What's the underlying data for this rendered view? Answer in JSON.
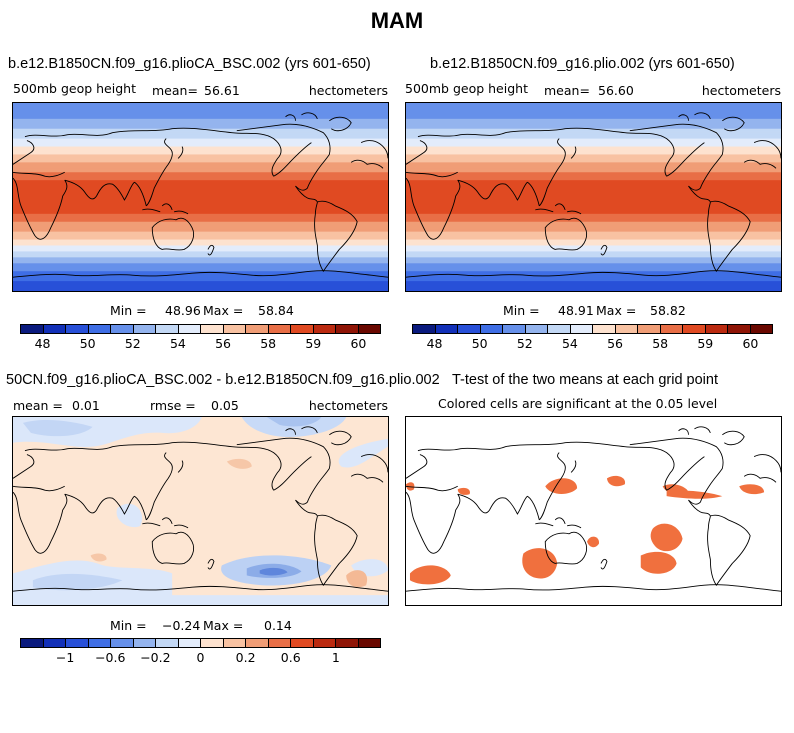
{
  "figure": {
    "title": "MAM"
  },
  "panels": [
    {
      "title": "b.e12.B1850CN.f09_g16.plioCA_BSC.002 (yrs 601-650)",
      "variable": "500mb geop height",
      "mean_text": "mean=",
      "mean_value": "56.61",
      "units": "hectometers",
      "min_label": "Min =",
      "min_value": "48.96",
      "max_label": "Max =",
      "max_value": "58.84"
    },
    {
      "title": "b.e12.B1850CN.f09_g16.plio.002 (yrs 601-650)",
      "variable": "500mb geop height",
      "mean_text": "mean=",
      "mean_value": "56.60",
      "units": "hectometers",
      "min_label": "Min =",
      "min_value": "48.91",
      "max_label": "Max =",
      "max_value": "58.82"
    },
    {
      "title": "50CN.f09_g16.plioCA_BSC.002 - b.e12.B1850CN.f09_g16.plio.002",
      "mean_text": "mean =",
      "mean_value": "0.01",
      "rmse_text": "rmse =",
      "rmse_value": "0.05",
      "units": "hectometers",
      "min_label": "Min =",
      "min_value": "−0.24",
      "max_label": "Max =",
      "max_value": "0.14"
    },
    {
      "title": "T-test of the two means at each grid point",
      "subtitle": "Colored cells are significant at the 0.05 level"
    }
  ],
  "colorbars": {
    "abs": {
      "ticks": [
        "48",
        "50",
        "52",
        "54",
        "56",
        "58",
        "59",
        "60"
      ],
      "colors": [
        "#0a1a7e",
        "#1230b8",
        "#2850d8",
        "#3f6ee5",
        "#6690ea",
        "#94b4ee",
        "#c3d8f5",
        "#e3ecfb",
        "#fde2cf",
        "#f8c2a2",
        "#f09d76",
        "#e86e46",
        "#e04a22",
        "#bb2a10",
        "#8f1506",
        "#6a0800"
      ]
    },
    "diff": {
      "ticks": [
        "−1",
        "−0.6",
        "−0.2",
        "0",
        "0.2",
        "0.6",
        "1"
      ],
      "colors": [
        "#0a1a7e",
        "#1230b8",
        "#2850d8",
        "#3f6ee5",
        "#6690ea",
        "#94b4ee",
        "#c3d8f5",
        "#e3ecfb",
        "#fde2cf",
        "#f8c2a2",
        "#f09d76",
        "#e86e46",
        "#e04a22",
        "#bb2a10",
        "#8f1506",
        "#6a0800"
      ]
    }
  },
  "chart_data": {
    "type": "heatmap",
    "season": "MAM",
    "field": "500mb geop height",
    "units": "hectometers",
    "maps": [
      {
        "name": "plioCA_BSC.002",
        "mean": 56.61,
        "min": 48.96,
        "max": 58.84,
        "latitude_profile": {
          "lat": [
            90,
            75,
            60,
            45,
            30,
            15,
            0,
            -15,
            -30,
            -45,
            -60,
            -75,
            -90
          ],
          "value": [
            51,
            52,
            53.5,
            55.5,
            57.5,
            58.6,
            58.8,
            58.6,
            57.5,
            55.3,
            52.5,
            50.5,
            49
          ]
        }
      },
      {
        "name": "plio.002",
        "mean": 56.6,
        "min": 48.91,
        "max": 58.82,
        "latitude_profile": {
          "lat": [
            90,
            75,
            60,
            45,
            30,
            15,
            0,
            -15,
            -30,
            -45,
            -60,
            -75,
            -90
          ],
          "value": [
            51,
            52,
            53.5,
            55.5,
            57.5,
            58.6,
            58.8,
            58.6,
            57.5,
            55.3,
            52.5,
            50.5,
            49
          ]
        }
      },
      {
        "name": "difference",
        "mean": 0.01,
        "rmse": 0.05,
        "min": -0.24,
        "max": 0.14
      },
      {
        "name": "t-test significance",
        "significance_level": 0.05
      }
    ]
  }
}
